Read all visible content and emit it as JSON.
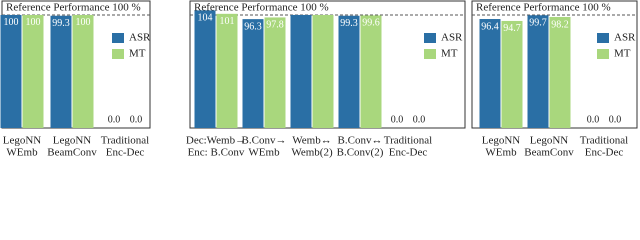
{
  "chart_data": [
    {
      "type": "bar",
      "reference_label": "Reference Performance 100 %",
      "ylim": [
        0,
        105
      ],
      "categories": [
        [
          "LegoNN",
          "WEmb"
        ],
        [
          "LegoNN",
          "BeamConv"
        ],
        [
          "Traditional",
          "Enc-Dec"
        ]
      ],
      "series": [
        {
          "name": "ASR",
          "color": "#2a6fa5",
          "values": [
            100,
            99.3,
            0.0
          ],
          "value_labels": [
            "100",
            "99.3",
            "0.0"
          ]
        },
        {
          "name": "MT",
          "color": "#a9d77d",
          "values": [
            100,
            100,
            0.0
          ],
          "value_labels": [
            "100",
            "100",
            "0.0"
          ]
        }
      ]
    },
    {
      "type": "bar",
      "reference_label": "Reference Performance 100 %",
      "ylim": [
        0,
        105
      ],
      "categories": [
        [
          "Dec:Wemb→",
          "Enc: B.Conv"
        ],
        [
          "B.Conv→",
          "WEmb"
        ],
        [
          "Wemb↔",
          "Wemb(2)"
        ],
        [
          "B.Conv↔",
          "B.Conv(2)"
        ],
        [
          "Traditional",
          "Enc-Dec"
        ]
      ],
      "series": [
        {
          "name": "ASR",
          "color": "#2a6fa5",
          "values": [
            104,
            96.3,
            100,
            99.3,
            0.0
          ],
          "value_labels": [
            "104",
            "96.3",
            null,
            "99.3",
            "0.0"
          ]
        },
        {
          "name": "MT",
          "color": "#a9d77d",
          "values": [
            101,
            97.8,
            100,
            99.6,
            0.0
          ],
          "value_labels": [
            "101",
            "97.8",
            null,
            "99.6",
            "0.0"
          ]
        }
      ]
    },
    {
      "type": "bar",
      "reference_label": "Reference Performance 100 %",
      "ylim": [
        0,
        105
      ],
      "categories": [
        [
          "LegoNN",
          "WEmb"
        ],
        [
          "LegoNN",
          "BeamConv"
        ],
        [
          "Traditional",
          "Enc-Dec"
        ]
      ],
      "series": [
        {
          "name": "ASR",
          "color": "#2a6fa5",
          "values": [
            96.4,
            99.7,
            0.0
          ],
          "value_labels": [
            "96.4",
            "99.7",
            "0.0"
          ]
        },
        {
          "name": "MT",
          "color": "#a9d77d",
          "values": [
            94.7,
            98.2,
            0.0
          ],
          "value_labels": [
            "94.7",
            "98.2",
            "0.0"
          ]
        }
      ]
    }
  ]
}
